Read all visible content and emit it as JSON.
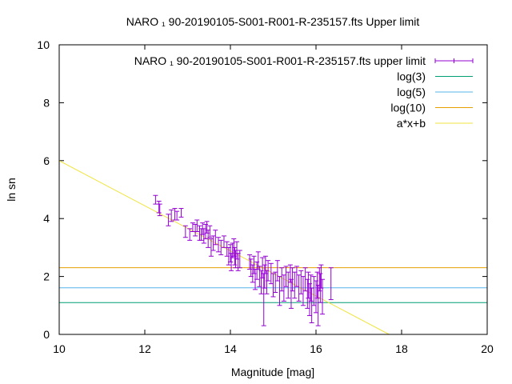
{
  "chart_data": {
    "type": "scatter",
    "title": "NARO ₁ 90-20190105-S001-R001-R-235157.fts Upper limit",
    "xlabel": "Magnitude [mag]",
    "ylabel": "ln sn",
    "xlim": [
      10,
      20
    ],
    "ylim": [
      0,
      10
    ],
    "xticks": [
      "10",
      "12",
      "14",
      "16",
      "18",
      "20"
    ],
    "yticks": [
      "0",
      "2",
      "4",
      "6",
      "8",
      "10"
    ],
    "legend_position": "top-right",
    "grid": false,
    "series": [
      {
        "name": "NARO ₁ 90-20190105-S001-R001-R-235157.fts upper limit",
        "kind": "errorbars",
        "color": "#9400d3",
        "points": [
          [
            12.25,
            4.65,
            0.15
          ],
          [
            12.33,
            4.4,
            0.2
          ],
          [
            12.35,
            4.3,
            0.2
          ],
          [
            12.55,
            3.95,
            0.2
          ],
          [
            12.62,
            4.1,
            0.2
          ],
          [
            12.7,
            4.15,
            0.2
          ],
          [
            12.75,
            4.1,
            0.15
          ],
          [
            12.85,
            4.2,
            0.15
          ],
          [
            12.95,
            3.55,
            0.2
          ],
          [
            13.05,
            3.45,
            0.2
          ],
          [
            13.12,
            3.7,
            0.15
          ],
          [
            13.18,
            3.6,
            0.2
          ],
          [
            13.22,
            3.75,
            0.2
          ],
          [
            13.28,
            3.5,
            0.25
          ],
          [
            13.32,
            3.45,
            0.2
          ],
          [
            13.35,
            3.65,
            0.2
          ],
          [
            13.38,
            3.4,
            0.25
          ],
          [
            13.42,
            3.55,
            0.25
          ],
          [
            13.45,
            3.7,
            0.2
          ],
          [
            13.48,
            3.3,
            0.3
          ],
          [
            13.52,
            3.55,
            0.2
          ],
          [
            13.55,
            3.0,
            0.3
          ],
          [
            13.6,
            3.15,
            0.25
          ],
          [
            13.65,
            3.35,
            0.25
          ],
          [
            13.72,
            3.1,
            0.25
          ],
          [
            13.78,
            3.0,
            0.25
          ],
          [
            13.85,
            3.2,
            0.2
          ],
          [
            13.92,
            2.95,
            0.25
          ],
          [
            13.96,
            2.7,
            0.3
          ],
          [
            14.0,
            2.8,
            0.3
          ],
          [
            14.02,
            2.5,
            0.3
          ],
          [
            14.05,
            2.9,
            0.25
          ],
          [
            14.08,
            3.0,
            0.3
          ],
          [
            14.1,
            2.7,
            0.3
          ],
          [
            14.12,
            2.6,
            0.3
          ],
          [
            14.15,
            2.9,
            0.3
          ],
          [
            14.18,
            2.5,
            0.3
          ],
          [
            14.22,
            2.6,
            0.3
          ],
          [
            14.45,
            2.5,
            0.25
          ],
          [
            14.48,
            2.3,
            0.3
          ],
          [
            14.52,
            2.1,
            0.3
          ],
          [
            14.55,
            2.4,
            0.3
          ],
          [
            14.58,
            1.9,
            0.35
          ],
          [
            14.62,
            2.2,
            0.3
          ],
          [
            14.65,
            2.55,
            0.3
          ],
          [
            14.68,
            2.0,
            0.35
          ],
          [
            14.72,
            1.8,
            0.4
          ],
          [
            14.75,
            2.3,
            0.35
          ],
          [
            14.78,
            1.2,
            0.9
          ],
          [
            14.8,
            2.0,
            0.4
          ],
          [
            14.82,
            2.4,
            0.3
          ],
          [
            14.85,
            1.8,
            0.4
          ],
          [
            14.88,
            2.2,
            0.35
          ],
          [
            14.95,
            2.1,
            0.35
          ],
          [
            15.0,
            1.7,
            0.4
          ],
          [
            15.05,
            1.8,
            0.35
          ],
          [
            15.1,
            2.2,
            0.35
          ],
          [
            15.15,
            1.5,
            0.5
          ],
          [
            15.2,
            1.9,
            0.4
          ],
          [
            15.25,
            1.6,
            0.45
          ],
          [
            15.3,
            2.0,
            0.35
          ],
          [
            15.35,
            1.7,
            0.45
          ],
          [
            15.4,
            2.1,
            0.3
          ],
          [
            15.42,
            1.4,
            0.5
          ],
          [
            15.45,
            1.9,
            0.4
          ],
          [
            15.5,
            1.7,
            0.45
          ],
          [
            15.55,
            2.0,
            0.35
          ],
          [
            15.6,
            1.6,
            0.45
          ],
          [
            15.65,
            1.8,
            0.4
          ],
          [
            15.7,
            1.5,
            0.5
          ],
          [
            15.75,
            1.9,
            0.4
          ],
          [
            15.8,
            1.4,
            0.5
          ],
          [
            15.82,
            1.7,
            0.45
          ],
          [
            15.85,
            1.2,
            0.55
          ],
          [
            15.88,
            1.6,
            0.45
          ],
          [
            15.9,
            1.0,
            0.6
          ],
          [
            15.95,
            1.5,
            0.5
          ],
          [
            16.0,
            1.3,
            0.55
          ],
          [
            16.03,
            1.7,
            0.45
          ],
          [
            16.05,
            1.0,
            0.7
          ],
          [
            16.08,
            1.9,
            0.4
          ],
          [
            16.1,
            1.6,
            0.5
          ],
          [
            16.12,
            2.0,
            0.4
          ],
          [
            16.15,
            1.3,
            0.6
          ],
          [
            16.35,
            1.75,
            0.55
          ]
        ]
      },
      {
        "name": "log(3)",
        "kind": "hline",
        "value": 1.0986,
        "color": "#009e73"
      },
      {
        "name": "log(5)",
        "kind": "hline",
        "value": 1.6094,
        "color": "#56b4e9"
      },
      {
        "name": "log(10)",
        "kind": "hline",
        "value": 2.3026,
        "color": "#e69f00"
      },
      {
        "name": "a*x+b",
        "kind": "line",
        "a": -0.7782,
        "b": 13.78,
        "color": "#f0e442"
      }
    ]
  }
}
